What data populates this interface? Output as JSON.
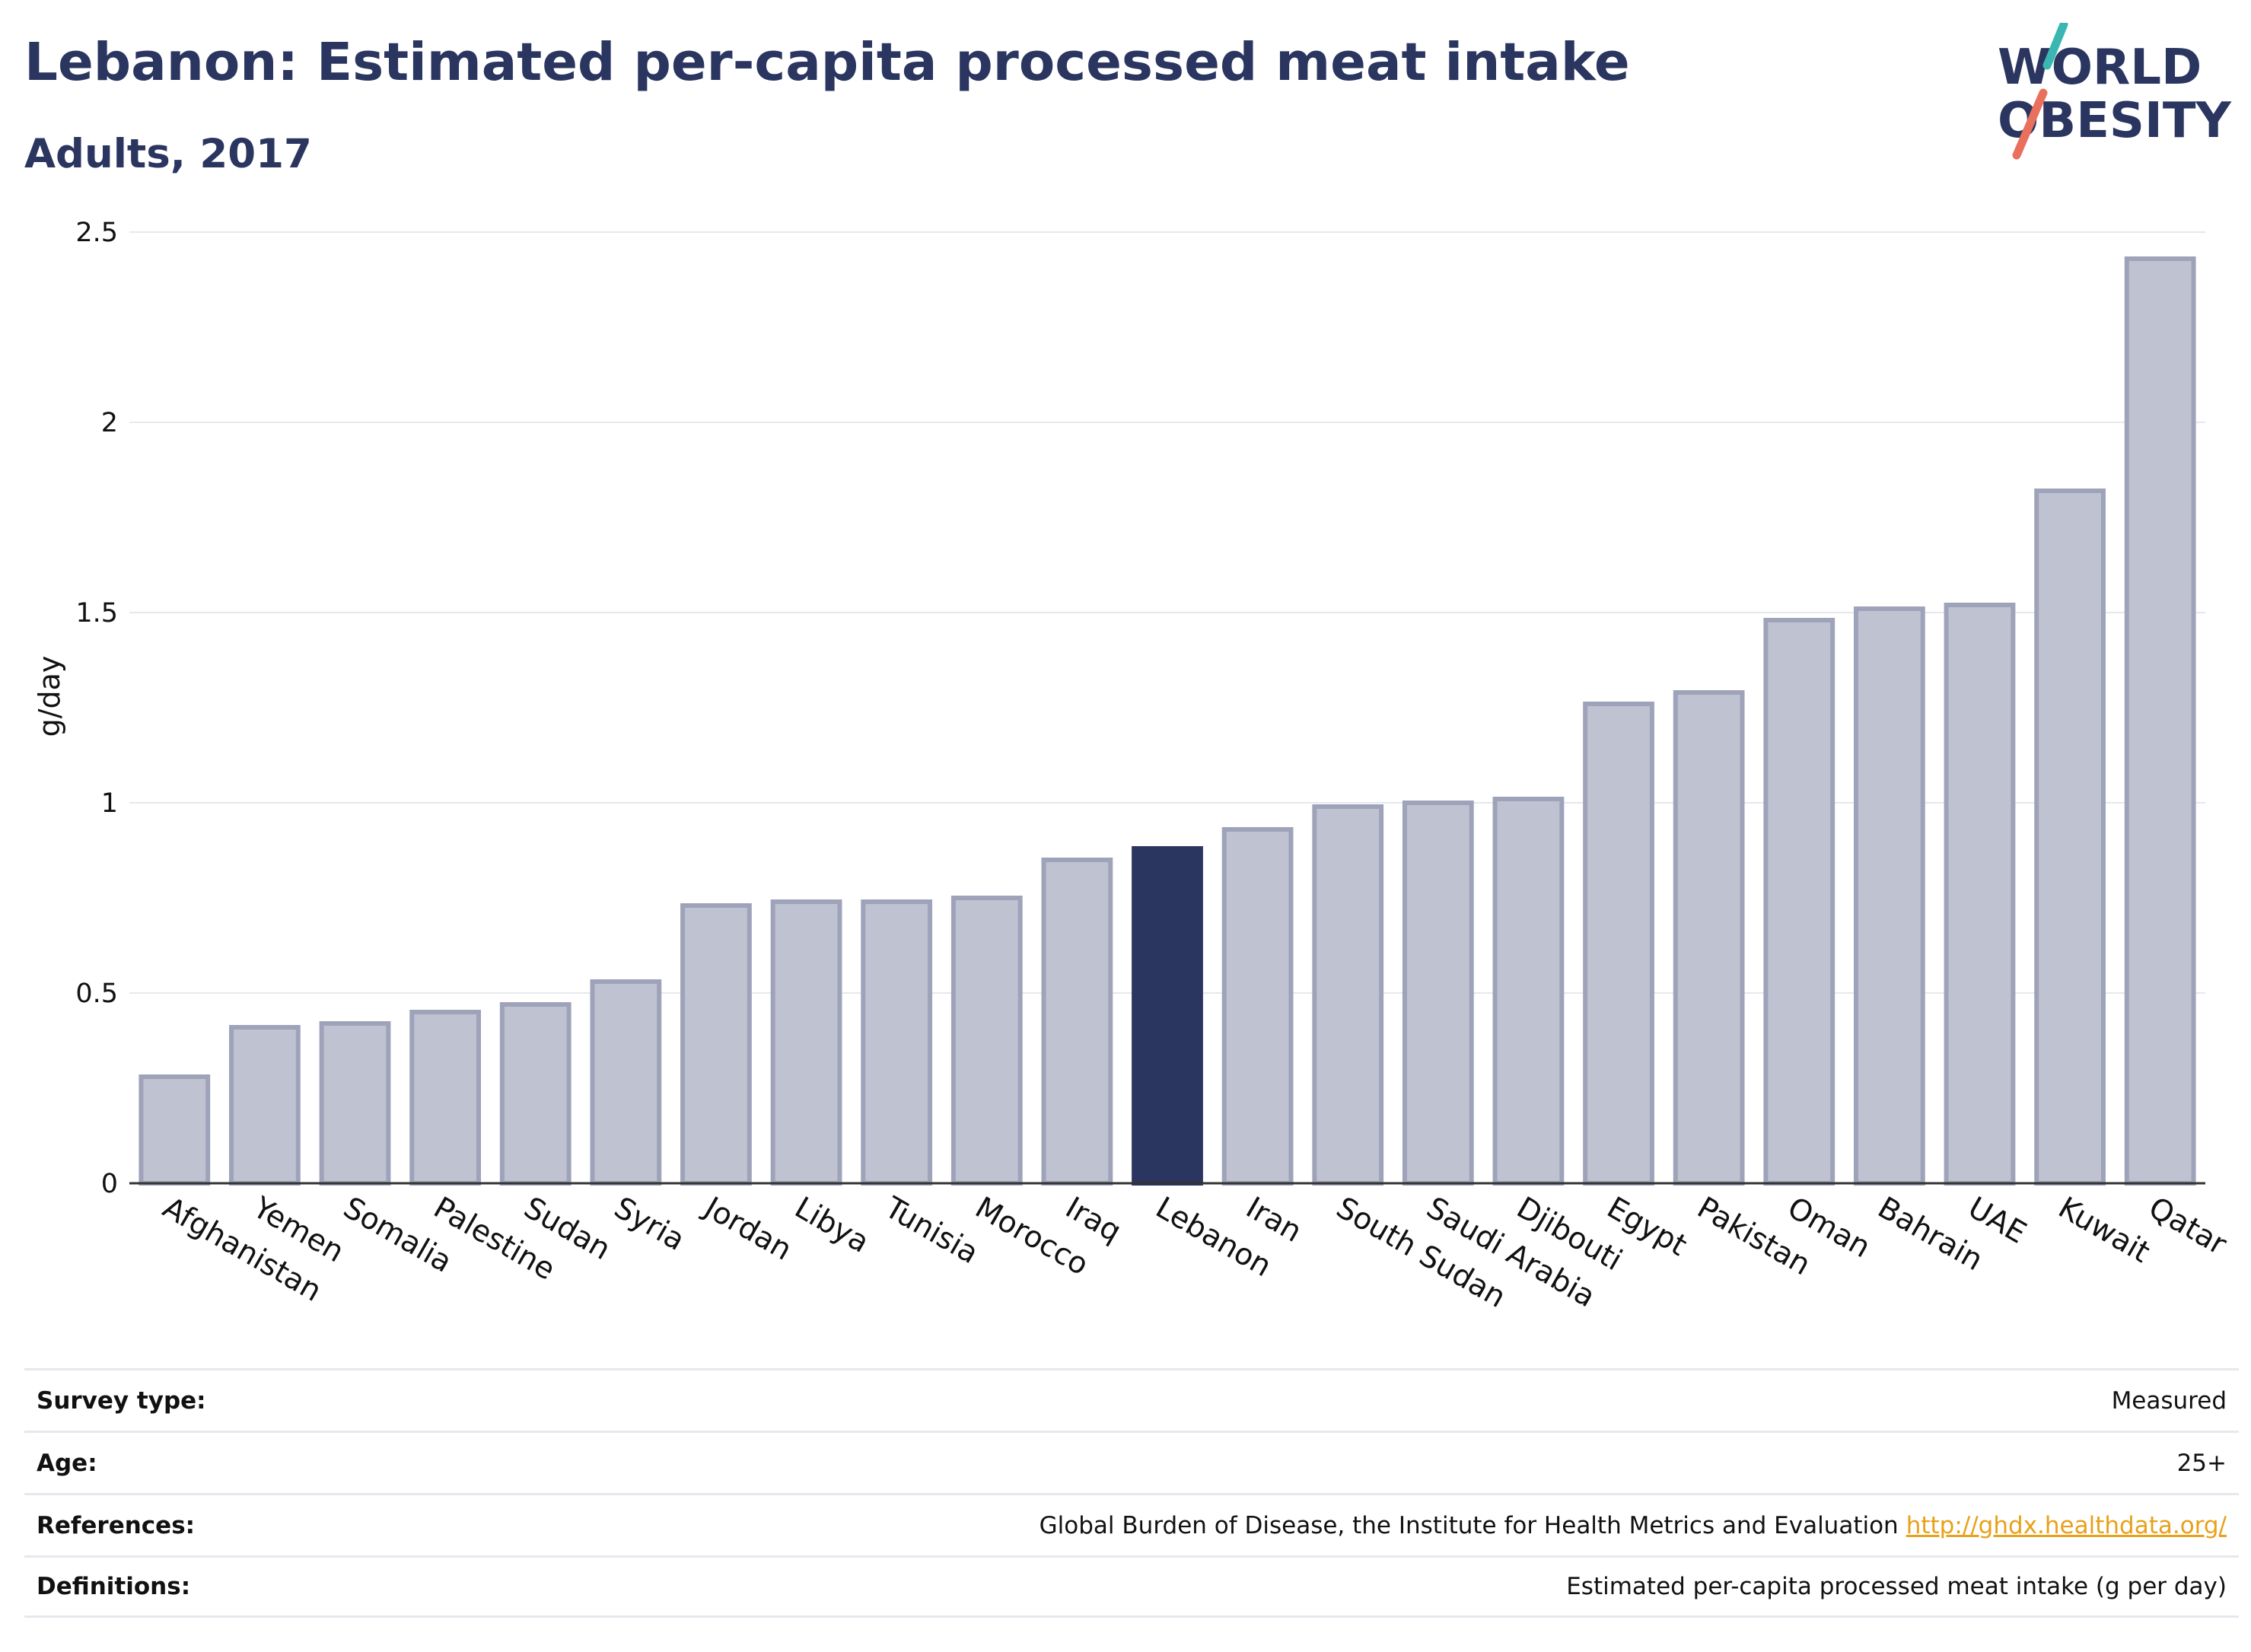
{
  "header": {
    "title": "Lebanon: Estimated per-capita processed meat intake",
    "subtitle": "Adults, 2017"
  },
  "logo": {
    "line1": "WORLD",
    "line2": "OBESITY",
    "colors": {
      "text": "#2a3560",
      "slash_teal": "#3ab7b3",
      "slash_coral": "#e8705d"
    }
  },
  "chart_data": {
    "type": "bar",
    "title": "Lebanon: Estimated per-capita processed meat intake",
    "subtitle": "Adults, 2017",
    "ylabel": "g/day",
    "xlabel": "",
    "ylim": [
      0,
      2.5
    ],
    "yticks": [
      0,
      0.5,
      1,
      1.5,
      2,
      2.5
    ],
    "ytick_labels": [
      "0",
      "0.5",
      "1",
      "1.5",
      "2",
      "2.5"
    ],
    "grid": true,
    "highlight": "Lebanon",
    "categories": [
      "Afghanistan",
      "Yemen",
      "Somalia",
      "Palestine",
      "Sudan",
      "Syria",
      "Jordan",
      "Libya",
      "Tunisia",
      "Morocco",
      "Iraq",
      "Lebanon",
      "Iran",
      "South Sudan",
      "Saudi Arabia",
      "Djibouti",
      "Egypt",
      "Pakistan",
      "Oman",
      "Bahrain",
      "UAE",
      "Kuwait",
      "Qatar"
    ],
    "values": [
      0.28,
      0.41,
      0.42,
      0.45,
      0.47,
      0.53,
      0.73,
      0.74,
      0.74,
      0.75,
      0.85,
      0.88,
      0.93,
      0.99,
      1.0,
      1.01,
      1.26,
      1.29,
      1.48,
      1.51,
      1.52,
      1.82,
      2.43
    ],
    "colors": {
      "bar": "#bfc2d0",
      "bar_edge": "#9ea3ba",
      "highlight": "#2a3560",
      "grid": "#e6e8ee",
      "axis": "#333333"
    }
  },
  "info": {
    "rows": [
      {
        "label": "Survey type:",
        "value": "Measured"
      },
      {
        "label": "Age:",
        "value": "25+"
      },
      {
        "label": "References:",
        "value": "Global Burden of Disease, the Institute for Health Metrics and Evaluation",
        "link": "http://ghdx.healthdata.org/"
      },
      {
        "label": "Definitions:",
        "value": "Estimated per-capita processed meat intake (g per day)"
      }
    ]
  }
}
